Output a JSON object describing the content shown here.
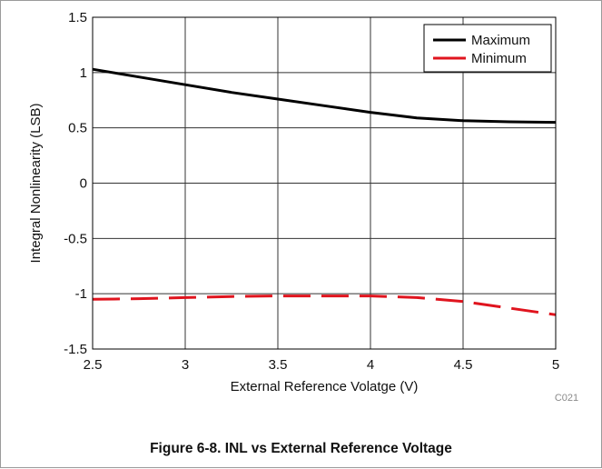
{
  "figure": {
    "caption": "Figure 6-8. INL vs External Reference Voltage",
    "code": "C021"
  },
  "colors": {
    "maximum": "#000000",
    "minimum": "#e0141e",
    "grid": "#333333"
  },
  "chart_data": {
    "type": "line",
    "title": "",
    "xlabel": "External Reference Volatge (V)",
    "ylabel": "Integral Nonlinearity (LSB)",
    "xlim": [
      2.5,
      5
    ],
    "ylim": [
      -1.5,
      1.5
    ],
    "x_ticks": [
      "2.5",
      "3",
      "3.5",
      "4",
      "4.5",
      "5"
    ],
    "y_ticks": [
      "-1.5",
      "-1",
      "-0.5",
      "0",
      "0.5",
      "1",
      "1.5"
    ],
    "grid": true,
    "legend_position": "top-right",
    "series": [
      {
        "name": "Maximum",
        "style": "solid",
        "x": [
          2.5,
          2.75,
          3.0,
          3.25,
          3.5,
          3.75,
          4.0,
          4.25,
          4.5,
          4.75,
          5.0
        ],
        "y": [
          1.03,
          0.96,
          0.89,
          0.82,
          0.76,
          0.7,
          0.64,
          0.59,
          0.565,
          0.555,
          0.55
        ]
      },
      {
        "name": "Minimum",
        "style": "dashed",
        "x": [
          2.5,
          2.75,
          3.0,
          3.25,
          3.5,
          3.75,
          4.0,
          4.25,
          4.5,
          4.75,
          5.0
        ],
        "y": [
          -1.05,
          -1.045,
          -1.035,
          -1.025,
          -1.02,
          -1.02,
          -1.02,
          -1.035,
          -1.07,
          -1.13,
          -1.19
        ]
      }
    ]
  }
}
